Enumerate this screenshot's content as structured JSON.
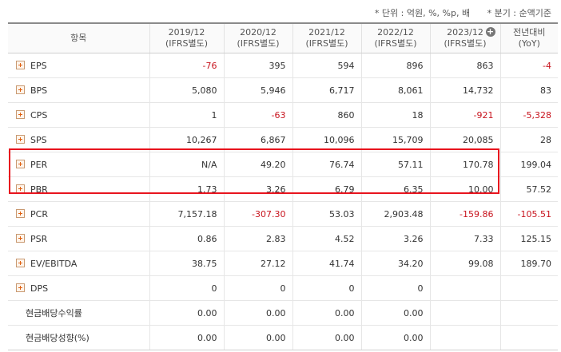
{
  "notes": {
    "unit": "* 단위 : 억원, %, %p, 배",
    "quarter": "* 분기 : 순액기준"
  },
  "header": {
    "item": "항목",
    "periods": [
      {
        "year": "2019/12",
        "basis": "(IFRS별도)"
      },
      {
        "year": "2020/12",
        "basis": "(IFRS별도)"
      },
      {
        "year": "2021/12",
        "basis": "(IFRS별도)"
      },
      {
        "year": "2022/12",
        "basis": "(IFRS별도)"
      },
      {
        "year": "2023/12",
        "basis": "(IFRS별도)"
      }
    ],
    "yoy_title": "전년대비",
    "yoy_sub": "(YoY)",
    "expand_icon": "circle-plus-icon"
  },
  "rows": [
    {
      "label": "EPS",
      "expandable": true,
      "values": [
        "-76",
        "395",
        "594",
        "896",
        "863",
        "-4"
      ]
    },
    {
      "label": "BPS",
      "expandable": true,
      "values": [
        "5,080",
        "5,946",
        "6,717",
        "8,061",
        "14,732",
        "83"
      ]
    },
    {
      "label": "CPS",
      "expandable": true,
      "values": [
        "1",
        "-63",
        "860",
        "18",
        "-921",
        "-5,328"
      ]
    },
    {
      "label": "SPS",
      "expandable": true,
      "values": [
        "10,267",
        "6,867",
        "10,096",
        "15,709",
        "20,085",
        "28"
      ]
    },
    {
      "label": "PER",
      "expandable": true,
      "values": [
        "N/A",
        "49.20",
        "76.74",
        "57.11",
        "170.78",
        "199.04"
      ]
    },
    {
      "label": "PBR",
      "expandable": true,
      "values": [
        "1.73",
        "3.26",
        "6.79",
        "6.35",
        "10.00",
        "57.52"
      ]
    },
    {
      "label": "PCR",
      "expandable": true,
      "values": [
        "7,157.18",
        "-307.30",
        "53.03",
        "2,903.48",
        "-159.86",
        "-105.51"
      ]
    },
    {
      "label": "PSR",
      "expandable": true,
      "values": [
        "0.86",
        "2.83",
        "4.52",
        "3.26",
        "7.33",
        "125.15"
      ]
    },
    {
      "label": "EV/EBITDA",
      "expandable": true,
      "values": [
        "38.75",
        "27.12",
        "41.74",
        "34.20",
        "99.08",
        "189.70"
      ]
    },
    {
      "label": "DPS",
      "expandable": true,
      "values": [
        "0",
        "0",
        "0",
        "0",
        "",
        ""
      ]
    },
    {
      "label": "현금배당수익률",
      "expandable": false,
      "values": [
        "0.00",
        "0.00",
        "0.00",
        "0.00",
        "",
        ""
      ]
    },
    {
      "label": "현금배당성향(%)",
      "expandable": false,
      "values": [
        "0.00",
        "0.00",
        "0.00",
        "0.00",
        "",
        ""
      ]
    }
  ],
  "colors": {
    "negative": "#c8141e",
    "highlight": "#e8141e",
    "expand_icon": "#e06010"
  }
}
